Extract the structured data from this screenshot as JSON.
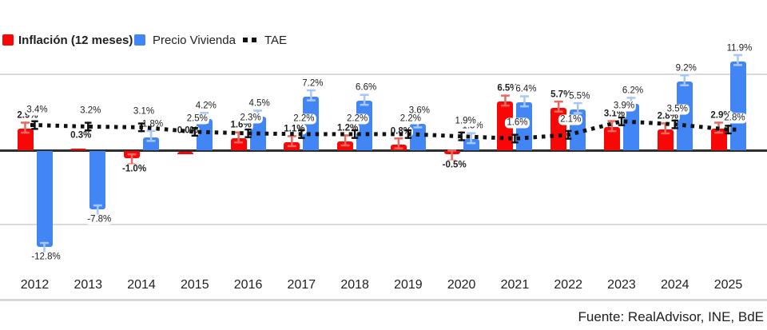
{
  "legend": {
    "inflacion": "Inflación (12 meses)",
    "vivienda": "Precio Vivienda",
    "tae": "TAE"
  },
  "footer": "Fuente: RealAdvisor, INE, BdE",
  "colors": {
    "inflacion": "#f90606",
    "vivienda": "#4285f4",
    "tae_line": "#111111",
    "whisker_red": "#e8695f",
    "whisker_blue": "#a7c7f9",
    "grid": "#d9d9d9",
    "zero_axis": "#2e2e2e"
  },
  "chart_data": {
    "type": "bar",
    "title": "",
    "xlabel": "",
    "ylabel": "",
    "categories": [
      "2012",
      "2013",
      "2014",
      "2015",
      "2016",
      "2017",
      "2018",
      "2019",
      "2020",
      "2021",
      "2022",
      "2023",
      "2024",
      "2025"
    ],
    "series": [
      {
        "name": "Inflación (12 meses)",
        "type": "bar",
        "color": "#f90606",
        "values": [
          2.9,
          0.3,
          -1.0,
          0.0,
          1.6,
          1.1,
          1.2,
          0.8,
          -0.5,
          6.5,
          5.7,
          3.1,
          2.8,
          2.9
        ]
      },
      {
        "name": "Precio Vivienda",
        "type": "bar",
        "color": "#4285f4",
        "values": [
          -12.8,
          -7.8,
          1.8,
          4.2,
          4.5,
          7.2,
          6.6,
          3.6,
          1.5,
          6.4,
          5.5,
          6.2,
          9.2,
          11.9
        ]
      },
      {
        "name": "TAE",
        "type": "line",
        "color": "#111111",
        "style": "dotted",
        "values": [
          3.4,
          3.2,
          3.1,
          2.5,
          2.3,
          2.2,
          2.2,
          2.2,
          1.9,
          1.6,
          2.1,
          3.9,
          3.5,
          2.8
        ]
      }
    ],
    "value_label_format": "one_decimal_percent",
    "ylim": [
      -15,
      13
    ],
    "gridlines_at": [
      10,
      0,
      -10
    ],
    "legend_position": "top-left",
    "error_bars": true
  }
}
